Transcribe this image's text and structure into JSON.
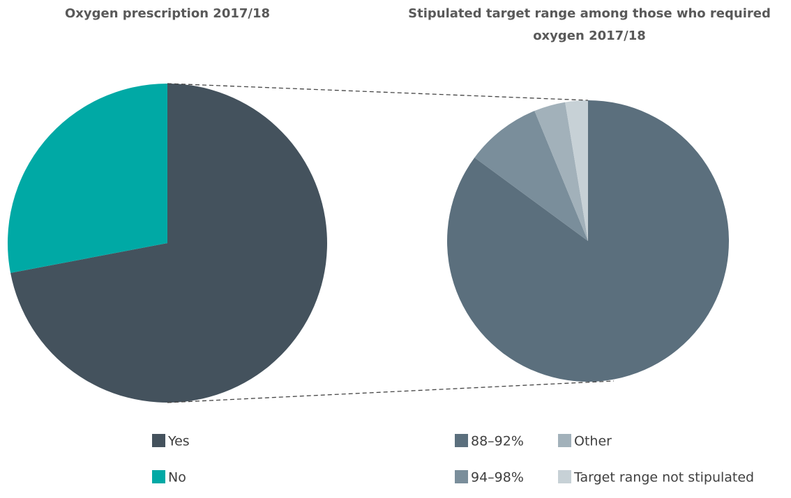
{
  "chart_data": [
    {
      "type": "pie",
      "title": "Oxygen prescription 2017/18",
      "categories": [
        "Yes",
        "No"
      ],
      "values": [
        72,
        28
      ],
      "colors": [
        "#44525d",
        "#00a9a5"
      ]
    },
    {
      "type": "pie",
      "title": "Stipulated target range among those who required oxygen 2017/18",
      "categories": [
        "88–92%",
        "94–98%",
        "Other",
        "Target range not stipulated"
      ],
      "values": [
        85.1,
        8.7,
        3.6,
        2.6
      ],
      "colors": [
        "#5b6f7d",
        "#7a8e9b",
        "#a2b1ba",
        "#c7d1d6"
      ]
    }
  ]
}
